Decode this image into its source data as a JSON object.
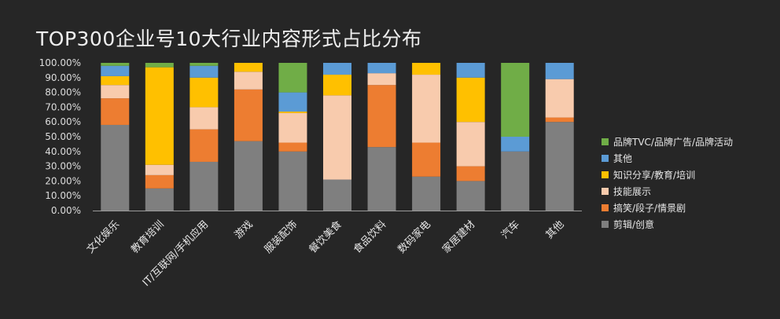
{
  "chart_data": {
    "type": "bar",
    "stacked": true,
    "percent": true,
    "title": "TOP300企业号10大行业内容形式占比分布",
    "categories": [
      "文化娱乐",
      "教育培训",
      "IT/互联网/手机应用",
      "游戏",
      "服装配饰",
      "餐饮美食",
      "食品饮料",
      "数码家电",
      "家居建材",
      "汽车",
      "其他"
    ],
    "yticks": [
      "0.00%",
      "10.00%",
      "20.00%",
      "30.00%",
      "40.00%",
      "50.00%",
      "60.00%",
      "70.00%",
      "80.00%",
      "90.00%",
      "100.00%"
    ],
    "ylim": [
      0,
      100
    ],
    "grid": false,
    "legend_position": "right",
    "series": [
      {
        "name": "剪辑/创意",
        "color": "#7f7f7f",
        "values": [
          58,
          15,
          33,
          47,
          40,
          21,
          43,
          23,
          20,
          40,
          60
        ]
      },
      {
        "name": "搞笑/段子/情景剧",
        "color": "#ed7d31",
        "values": [
          18,
          9,
          22,
          35,
          6,
          0,
          42,
          23,
          10,
          0,
          3
        ]
      },
      {
        "name": "技能展示",
        "color": "#f8cbad",
        "values": [
          9,
          7,
          15,
          12,
          20,
          57,
          8,
          46,
          30,
          0,
          26
        ]
      },
      {
        "name": "知识分享/教育/培训",
        "color": "#ffc000",
        "values": [
          6,
          66,
          20,
          6,
          1,
          14,
          0,
          8,
          30,
          0,
          0
        ]
      },
      {
        "name": "其他",
        "color": "#5b9bd5",
        "values": [
          7,
          0,
          8,
          0,
          13,
          8,
          7,
          0,
          10,
          10,
          11
        ]
      },
      {
        "name": "品牌TVC/品牌广告/品牌活动",
        "color": "#70ad47",
        "values": [
          2,
          3,
          2,
          0,
          20,
          0,
          0,
          0,
          0,
          50,
          0
        ]
      }
    ],
    "legend_order": [
      "品牌TVC/品牌广告/品牌活动",
      "其他",
      "知识分享/教育/培训",
      "技能展示",
      "搞笑/段子/情景剧",
      "剪辑/创意"
    ]
  }
}
